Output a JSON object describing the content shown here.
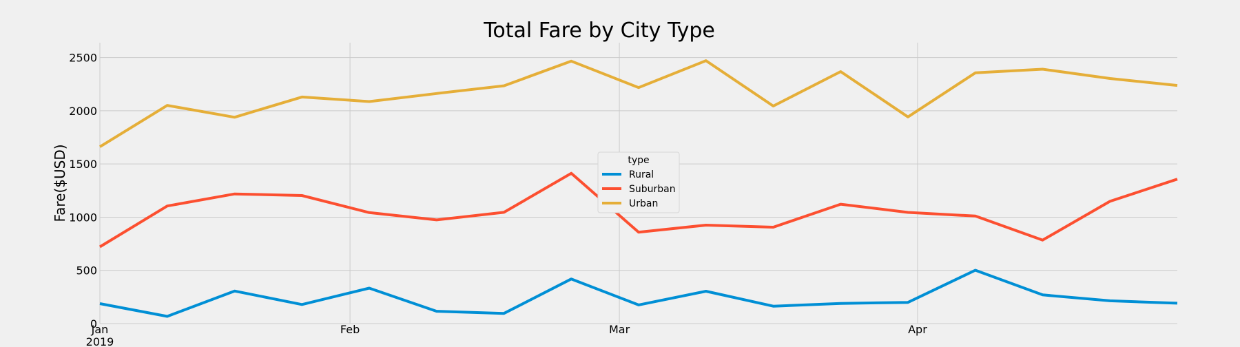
{
  "chart_data": {
    "type": "line",
    "title": "Total Fare by City Type",
    "xlabel": "",
    "ylabel": "Fare($USD)",
    "ylim": [
      0,
      2640
    ],
    "yticks": [
      0,
      500,
      1000,
      1500,
      2000,
      2500
    ],
    "x": [
      "2019-01-06",
      "2019-01-13",
      "2019-01-20",
      "2019-01-27",
      "2019-02-03",
      "2019-02-10",
      "2019-02-17",
      "2019-02-24",
      "2019-03-03",
      "2019-03-10",
      "2019-03-17",
      "2019-03-24",
      "2019-03-31",
      "2019-04-07",
      "2019-04-14",
      "2019-04-21",
      "2019-04-28"
    ],
    "xlim": [
      "2019-01-06",
      "2019-04-28"
    ],
    "xticks": [
      {
        "date": "2019-01-01",
        "label": "Jan",
        "sublabel": "2019"
      },
      {
        "date": "2019-02-01",
        "label": "Feb",
        "sublabel": ""
      },
      {
        "date": "2019-03-01",
        "label": "Mar",
        "sublabel": ""
      },
      {
        "date": "2019-04-01",
        "label": "Apr",
        "sublabel": ""
      }
    ],
    "grid": true,
    "legend": {
      "title": "type",
      "placement": "center"
    },
    "series": [
      {
        "name": "Rural",
        "color": "#008fd5",
        "values": [
          187.92,
          67.65,
          306.0,
          179.5,
          333.08,
          115.8,
          95.82,
          419.06,
          175.14,
          303.94,
          163.39,
          189.76,
          199.42,
          501.24,
          269.79,
          214.14,
          191.85
        ]
      },
      {
        "name": "Suburban",
        "color": "#fc4f30",
        "values": [
          721.6,
          1105.13,
          1218.2,
          1203.28,
          1042.79,
          974.34,
          1045.5,
          1412.74,
          858.46,
          925.27,
          905.87,
          1122.2,
          1045.06,
          1010.73,
          784.82,
          1149.27,
          1357.75
        ]
      },
      {
        "name": "Urban",
        "color": "#e5ae38",
        "values": [
          1661.68,
          2050.43,
          1939.02,
          2129.51,
          2086.94,
          2162.64,
          2235.07,
          2466.29,
          2218.2,
          2470.93,
          2044.42,
          2368.37,
          1942.21,
          2356.7,
          2390.72,
          2303.8,
          2238.29
        ]
      }
    ]
  }
}
